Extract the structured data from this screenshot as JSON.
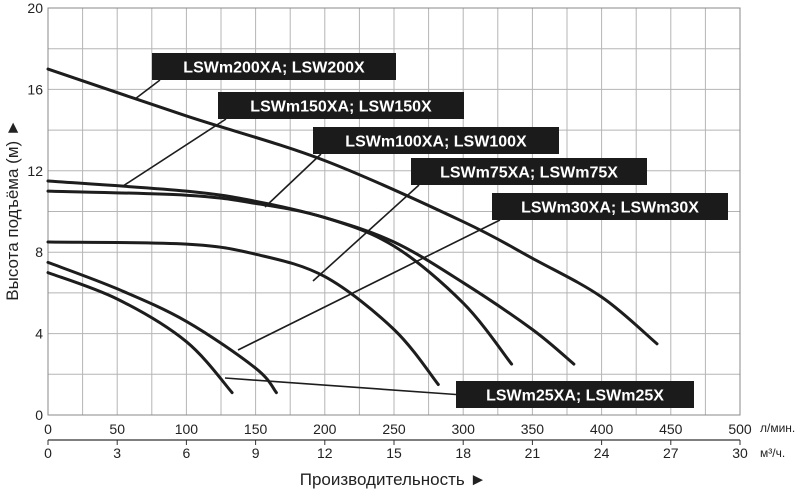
{
  "chart_data": {
    "type": "line",
    "title": "",
    "xlabel": "Производительность ►",
    "ylabel": "Высота подъёма (м) ►",
    "x_unit_primary": "л/мин.",
    "x_unit_secondary": "м³/ч.",
    "xlim": [
      0,
      500
    ],
    "ylim": [
      0,
      20
    ],
    "x_ticks_primary": [
      "0",
      "50",
      "100",
      "150",
      "200",
      "250",
      "300",
      "350",
      "400",
      "450",
      "500"
    ],
    "x_ticks_secondary": [
      "0",
      "3",
      "6",
      "9",
      "12",
      "15",
      "18",
      "21",
      "24",
      "27",
      "30"
    ],
    "y_ticks": [
      "0",
      "4",
      "8",
      "12",
      "16",
      "20"
    ],
    "grid": true,
    "series": [
      {
        "name": "LSWm200XA; LSW200X",
        "x": [
          0,
          100,
          200,
          300,
          350,
          400,
          440
        ],
        "y": [
          17,
          14.7,
          12.5,
          9.5,
          7.7,
          5.8,
          3.5
        ]
      },
      {
        "name": "LSWm150XA; LSW150X",
        "x": [
          0,
          100,
          150,
          200,
          250,
          300,
          350,
          380
        ],
        "y": [
          11.5,
          11.0,
          10.5,
          9.7,
          8.5,
          6.5,
          4.2,
          2.5
        ]
      },
      {
        "name": "LSWm100XA; LSW100X",
        "x": [
          0,
          100,
          150,
          200,
          250,
          300,
          335
        ],
        "y": [
          11.0,
          10.8,
          10.4,
          9.7,
          8.3,
          5.5,
          2.5
        ]
      },
      {
        "name": "LSWm75XA; LSWm75X",
        "x": [
          0,
          100,
          150,
          200,
          250,
          282
        ],
        "y": [
          8.5,
          8.4,
          7.9,
          6.8,
          4.2,
          1.5
        ]
      },
      {
        "name": "LSWm30XA; LSWm30X",
        "x": [
          0,
          50,
          100,
          150,
          165
        ],
        "y": [
          7.5,
          6.2,
          4.6,
          2.3,
          1.1
        ]
      },
      {
        "name": "LSWm25XA; LSWm25X",
        "x": [
          0,
          50,
          100,
          133
        ],
        "y": [
          7.0,
          5.7,
          3.6,
          1.1
        ]
      }
    ],
    "labels": [
      {
        "text": "LSWm200XA; LSW200X",
        "series": "LSWm200XA; LSW200X"
      },
      {
        "text": "LSWm150XA; LSW150X",
        "series": "LSWm150XA; LSW150X"
      },
      {
        "text": "LSWm100XA; LSW100X",
        "series": "LSWm100XA; LSW100X"
      },
      {
        "text": "LSWm75XA; LSWm75X",
        "series": "LSWm75XA; LSWm75X"
      },
      {
        "text": "LSWm30XA; LSWm30X",
        "series": "LSWm30XA; LSWm30X"
      },
      {
        "text": "LSWm25XA; LSWm25X",
        "series": "LSWm25XA; LSWm25X"
      }
    ]
  }
}
